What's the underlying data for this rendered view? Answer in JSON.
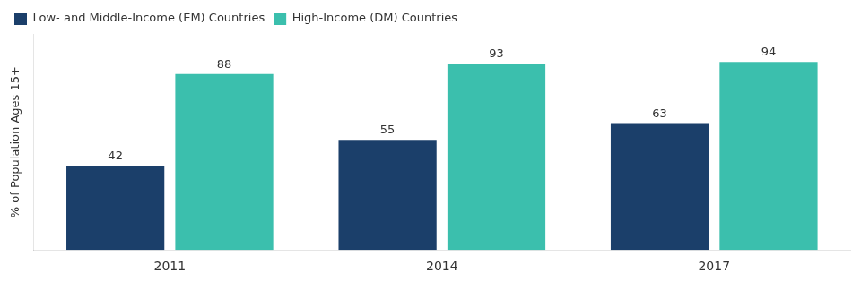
{
  "chart_data": {
    "type": "bar",
    "categories": [
      "2011",
      "2014",
      "2017"
    ],
    "series": [
      {
        "name": "Low- and Middle-Income (EM) Countries",
        "color": "#1b3f6a",
        "values": [
          42,
          55,
          63
        ]
      },
      {
        "name": "High-Income (DM) Countries",
        "color": "#3bbfad",
        "values": [
          88,
          93,
          94
        ]
      }
    ],
    "ylabel": "% of Population Ages 15+",
    "ylim": [
      0,
      108
    ],
    "grid": false,
    "legend": "upper left",
    "data_labels": true,
    "tick_labels": "x"
  }
}
